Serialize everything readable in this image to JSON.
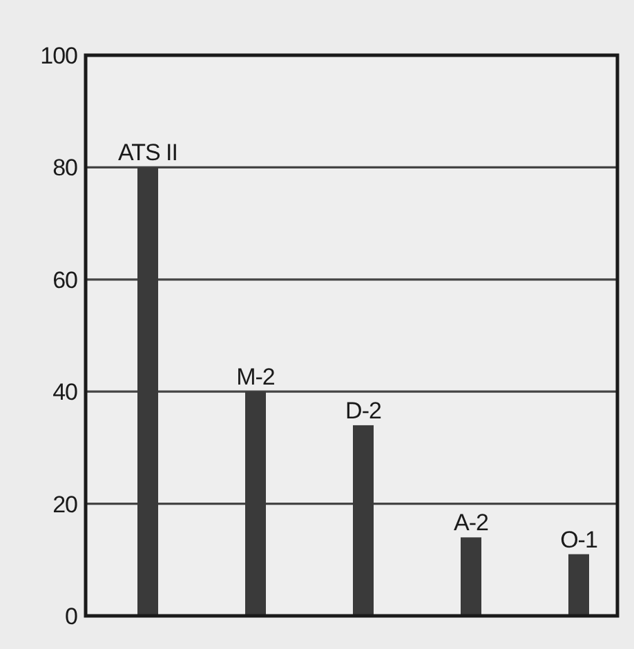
{
  "chart_data": {
    "type": "bar",
    "categories": [
      "ATS II",
      "M-2",
      "D-2",
      "A-2",
      "O-1"
    ],
    "values": [
      80,
      40,
      34,
      14,
      11
    ],
    "color": "#3a3a3a",
    "ylim": [
      0,
      100
    ],
    "yticks": [
      0,
      20,
      40,
      60,
      80,
      100
    ],
    "grid": "y"
  }
}
